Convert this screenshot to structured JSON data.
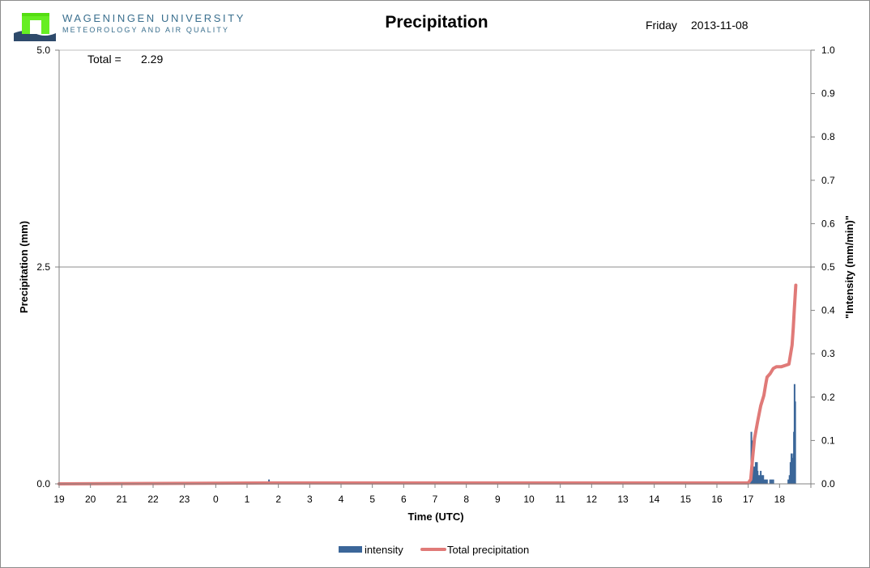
{
  "header": {
    "university": "WAGENINGEN UNIVERSITY",
    "department": "METEOROLOGY AND AIR QUALITY",
    "day": "Friday",
    "date": "2013-11-08"
  },
  "colors": {
    "intensity": "#3b6699",
    "total": "#e07a78",
    "logo_green": "#66ee22",
    "logo_navy": "#2e4a6b"
  },
  "chart_data": {
    "type": "bar+line",
    "title": "Precipitation",
    "xlabel": "Time (UTC)",
    "ylabel": "Precipitation (mm)",
    "y2label": "\"Intensity (mm/min)\"",
    "x_ticks": [
      "19",
      "20",
      "21",
      "22",
      "23",
      "0",
      "1",
      "2",
      "3",
      "4",
      "5",
      "6",
      "7",
      "8",
      "9",
      "10",
      "11",
      "12",
      "13",
      "14",
      "15",
      "16",
      "17",
      "18"
    ],
    "x_range_hours_since_19": [
      0,
      24
    ],
    "ylim": [
      0,
      5
    ],
    "y_ticks": [
      "0.0",
      "2.5",
      "5.0"
    ],
    "y2lim": [
      0,
      1
    ],
    "y2_ticks": [
      "0.0",
      "0.1",
      "0.2",
      "0.3",
      "0.4",
      "0.5",
      "0.6",
      "0.7",
      "0.8",
      "0.9",
      "1.0"
    ],
    "gridlines_y": [
      2.5
    ],
    "total_label": "Total =",
    "total_value": "2.29",
    "legend": [
      "intensity",
      "Total precipitation"
    ],
    "legend_position": "bottom",
    "series": [
      {
        "name": "intensity",
        "type": "bar",
        "x": [
          6.7,
          22.08,
          22.1,
          22.12,
          22.14,
          22.16,
          22.2,
          22.24,
          22.28,
          22.3,
          22.32,
          22.36,
          22.4,
          22.44,
          22.48,
          22.52,
          22.56,
          22.6,
          22.7,
          22.75,
          22.8,
          23.28,
          23.32,
          23.35,
          23.38,
          23.4,
          23.42,
          23.44,
          23.46,
          23.48,
          23.5
        ],
        "values": [
          0.01,
          0.02,
          0.12,
          0.1,
          0.06,
          0.04,
          0.04,
          0.05,
          0.05,
          0.03,
          0.02,
          0.02,
          0.03,
          0.02,
          0.02,
          0.01,
          0.01,
          0.01,
          0.01,
          0.01,
          0.01,
          0.01,
          0.02,
          0.05,
          0.07,
          0.06,
          0.05,
          0.07,
          0.12,
          0.23,
          0.19
        ]
      },
      {
        "name": "Total precipitation",
        "type": "line",
        "x": [
          0,
          6.7,
          22.0,
          22.08,
          22.14,
          22.2,
          22.3,
          22.4,
          22.5,
          22.56,
          22.6,
          22.7,
          22.8,
          22.9,
          23.05,
          23.3,
          23.4,
          23.44,
          23.47,
          23.52
        ],
        "values": [
          0.0,
          0.01,
          0.01,
          0.05,
          0.3,
          0.52,
          0.72,
          0.9,
          1.02,
          1.15,
          1.23,
          1.27,
          1.33,
          1.35,
          1.35,
          1.38,
          1.6,
          1.8,
          2.0,
          2.29
        ]
      }
    ]
  }
}
